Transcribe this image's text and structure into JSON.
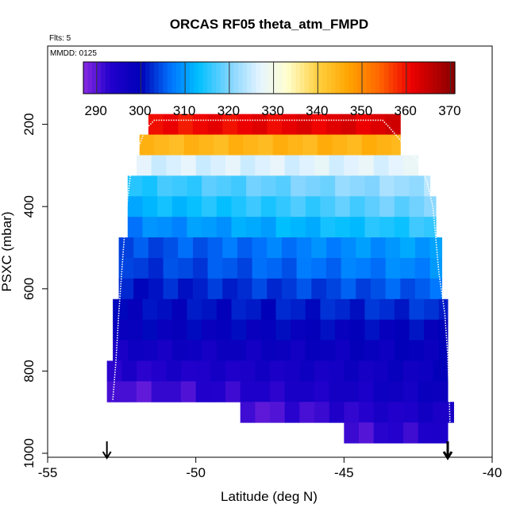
{
  "chart_data": {
    "type": "heatmap",
    "title": "ORCAS RF05 theta_atm_FMPD",
    "flights_note": "Flts: 5",
    "date_note": "MMDD: 0125",
    "xlabel": "Latitude (deg N)",
    "ylabel": "PSXC (mbar)",
    "xlim": [
      -55,
      -40
    ],
    "ylim": [
      1000,
      0
    ],
    "x_ticks": [
      -55,
      -50,
      -45,
      -40
    ],
    "y_ticks": [
      200,
      400,
      600,
      800,
      1000
    ],
    "colorbar": {
      "range": [
        287,
        371
      ],
      "ticks": [
        290,
        300,
        310,
        320,
        330,
        340,
        350,
        360,
        370
      ],
      "major_lines": [
        290,
        300,
        310,
        320,
        330,
        340,
        350,
        360,
        370
      ],
      "stops": [
        {
          "v": 287,
          "c": "#8a2be2"
        },
        {
          "v": 293,
          "c": "#2200cc"
        },
        {
          "v": 300,
          "c": "#0000b8"
        },
        {
          "v": 307,
          "c": "#0077ff"
        },
        {
          "v": 313,
          "c": "#00bfff"
        },
        {
          "v": 320,
          "c": "#7fd4ff"
        },
        {
          "v": 327,
          "c": "#e6f4ff"
        },
        {
          "v": 333,
          "c": "#ffffd0"
        },
        {
          "v": 340,
          "c": "#ffd040"
        },
        {
          "v": 347,
          "c": "#ffa500"
        },
        {
          "v": 354,
          "c": "#ff6400"
        },
        {
          "v": 361,
          "c": "#ee0000"
        },
        {
          "v": 367,
          "c": "#b00000"
        },
        {
          "v": 371,
          "c": "#880000"
        }
      ]
    },
    "cell_lat_width": 0.5,
    "cell_p_height": 50,
    "layers": [
      {
        "p": 200,
        "lat_min": -51.6,
        "lat_max": -43.1,
        "t_left": 360,
        "t_right": 363
      },
      {
        "p": 250,
        "lat_min": -51.9,
        "lat_max": -43.1,
        "t_left": 344,
        "t_right": 345
      },
      {
        "p": 300,
        "lat_min": -52.0,
        "lat_max": -42.5,
        "t_left": 326,
        "t_right": 327
      },
      {
        "p": 350,
        "lat_min": -52.3,
        "lat_max": -42.1,
        "t_left": 315,
        "t_right": 323
      },
      {
        "p": 400,
        "lat_min": -52.3,
        "lat_max": -41.9,
        "t_left": 312,
        "t_right": 320
      },
      {
        "p": 450,
        "lat_min": -52.3,
        "lat_max": -41.9,
        "t_left": 308,
        "t_right": 316
      },
      {
        "p": 500,
        "lat_min": -52.6,
        "lat_max": -41.7,
        "t_left": 304,
        "t_right": 311
      },
      {
        "p": 550,
        "lat_min": -52.6,
        "lat_max": -41.7,
        "t_left": 303,
        "t_right": 309
      },
      {
        "p": 600,
        "lat_min": -52.6,
        "lat_max": -41.7,
        "t_left": 301,
        "t_right": 306
      },
      {
        "p": 650,
        "lat_min": -52.8,
        "lat_max": -41.5,
        "t_left": 300,
        "t_right": 303
      },
      {
        "p": 700,
        "lat_min": -52.8,
        "lat_max": -41.5,
        "t_left": 299,
        "t_right": 300
      },
      {
        "p": 750,
        "lat_min": -52.8,
        "lat_max": -41.5,
        "t_left": 296,
        "t_right": 299
      },
      {
        "p": 800,
        "lat_min": -53.0,
        "lat_max": -41.5,
        "t_left": 293,
        "t_right": 298
      },
      {
        "p": 850,
        "lat_min": -53.0,
        "lat_max": -41.5,
        "t_left": 290,
        "t_right": 298
      },
      {
        "p": 900,
        "lat_min": -48.5,
        "lat_max": -41.3,
        "t_left": 290,
        "t_right": 296
      },
      {
        "p": 950,
        "lat_min": -45.0,
        "lat_max": -41.5,
        "t_left": 291,
        "t_right": 294
      }
    ],
    "flight_track": [
      [
        -52.8,
        870
      ],
      [
        -52.7,
        780
      ],
      [
        -52.6,
        660
      ],
      [
        -52.5,
        560
      ],
      [
        -52.4,
        460
      ],
      [
        -52.3,
        380
      ],
      [
        -52.2,
        320
      ],
      [
        -52.0,
        270
      ],
      [
        -51.8,
        230
      ],
      [
        -51.6,
        205
      ],
      [
        -51.4,
        190
      ],
      [
        -43.7,
        190
      ],
      [
        -43.5,
        205
      ],
      [
        -43.2,
        230
      ],
      [
        -42.8,
        265
      ],
      [
        -42.5,
        290
      ],
      [
        -42.2,
        340
      ],
      [
        -42.0,
        400
      ],
      [
        -41.9,
        480
      ],
      [
        -41.8,
        560
      ],
      [
        -41.6,
        660
      ],
      [
        -41.5,
        760
      ],
      [
        -41.45,
        860
      ],
      [
        -41.4,
        1000
      ]
    ],
    "arrows": [
      {
        "lat": -53.0,
        "weight": "light"
      },
      {
        "lat": -41.5,
        "weight": "bold"
      }
    ]
  }
}
